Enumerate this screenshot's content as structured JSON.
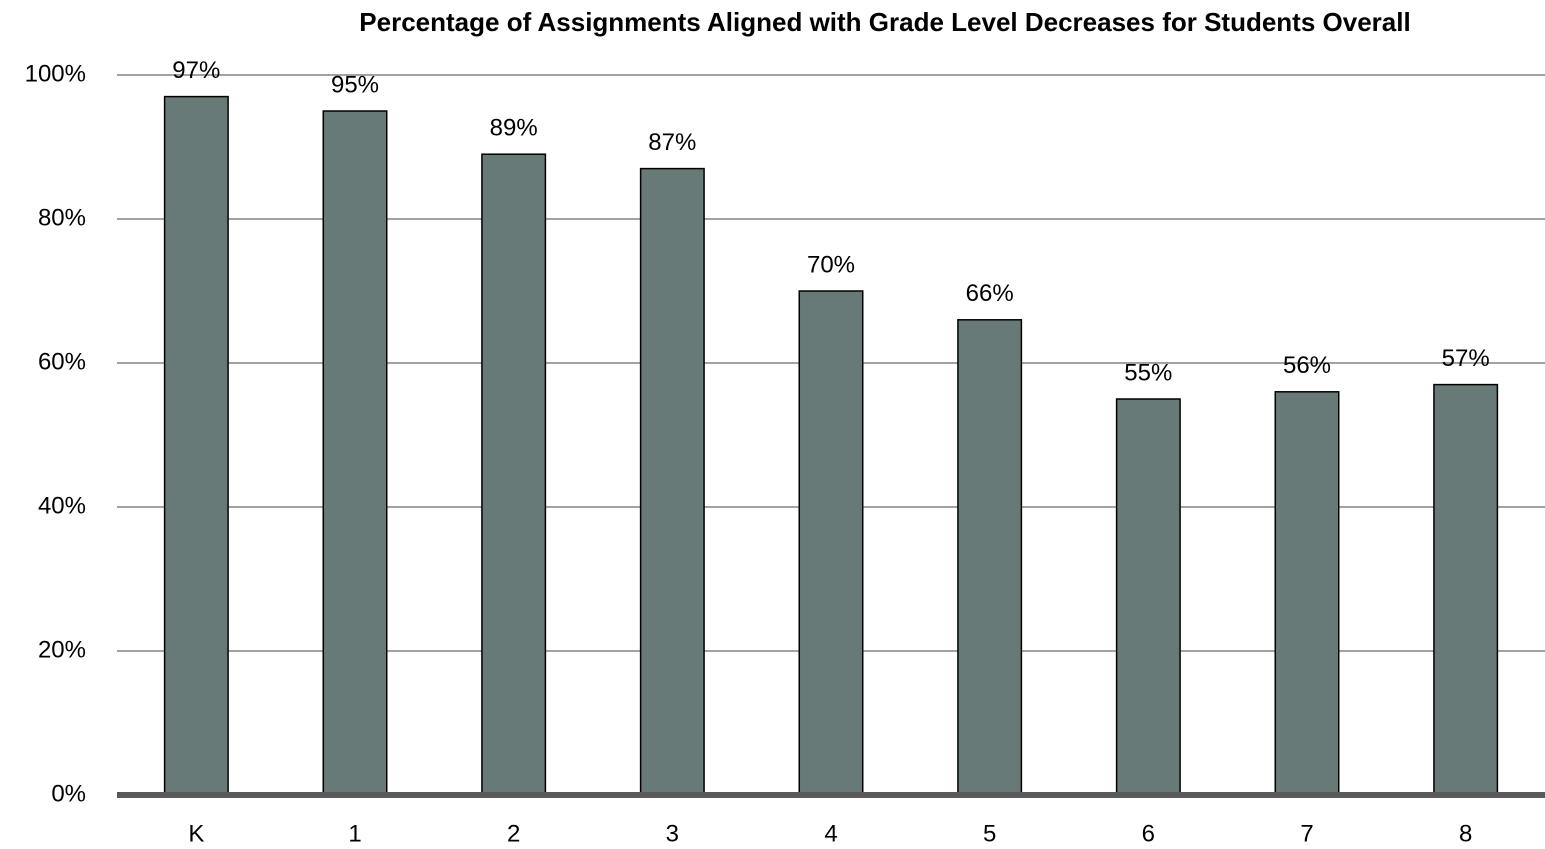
{
  "chart_data": {
    "type": "bar",
    "title": "Percentage of Assignments Aligned with Grade Level Decreases for Students Overall",
    "categories": [
      "K",
      "1",
      "2",
      "3",
      "4",
      "5",
      "6",
      "7",
      "8"
    ],
    "values": [
      97,
      95,
      89,
      87,
      70,
      66,
      55,
      56,
      57
    ],
    "value_labels": [
      "97%",
      "95%",
      "89%",
      "87%",
      "70%",
      "66%",
      "55%",
      "56%",
      "57%"
    ],
    "color": "#687a78",
    "ylim": [
      0,
      100
    ],
    "yticks": [
      {
        "value": 0,
        "label": "0%"
      },
      {
        "value": 20,
        "label": "20%"
      },
      {
        "value": 40,
        "label": "40%"
      },
      {
        "value": 60,
        "label": "60%"
      },
      {
        "value": 80,
        "label": "80%"
      },
      {
        "value": 100,
        "label": "100%"
      }
    ],
    "grid": true
  }
}
